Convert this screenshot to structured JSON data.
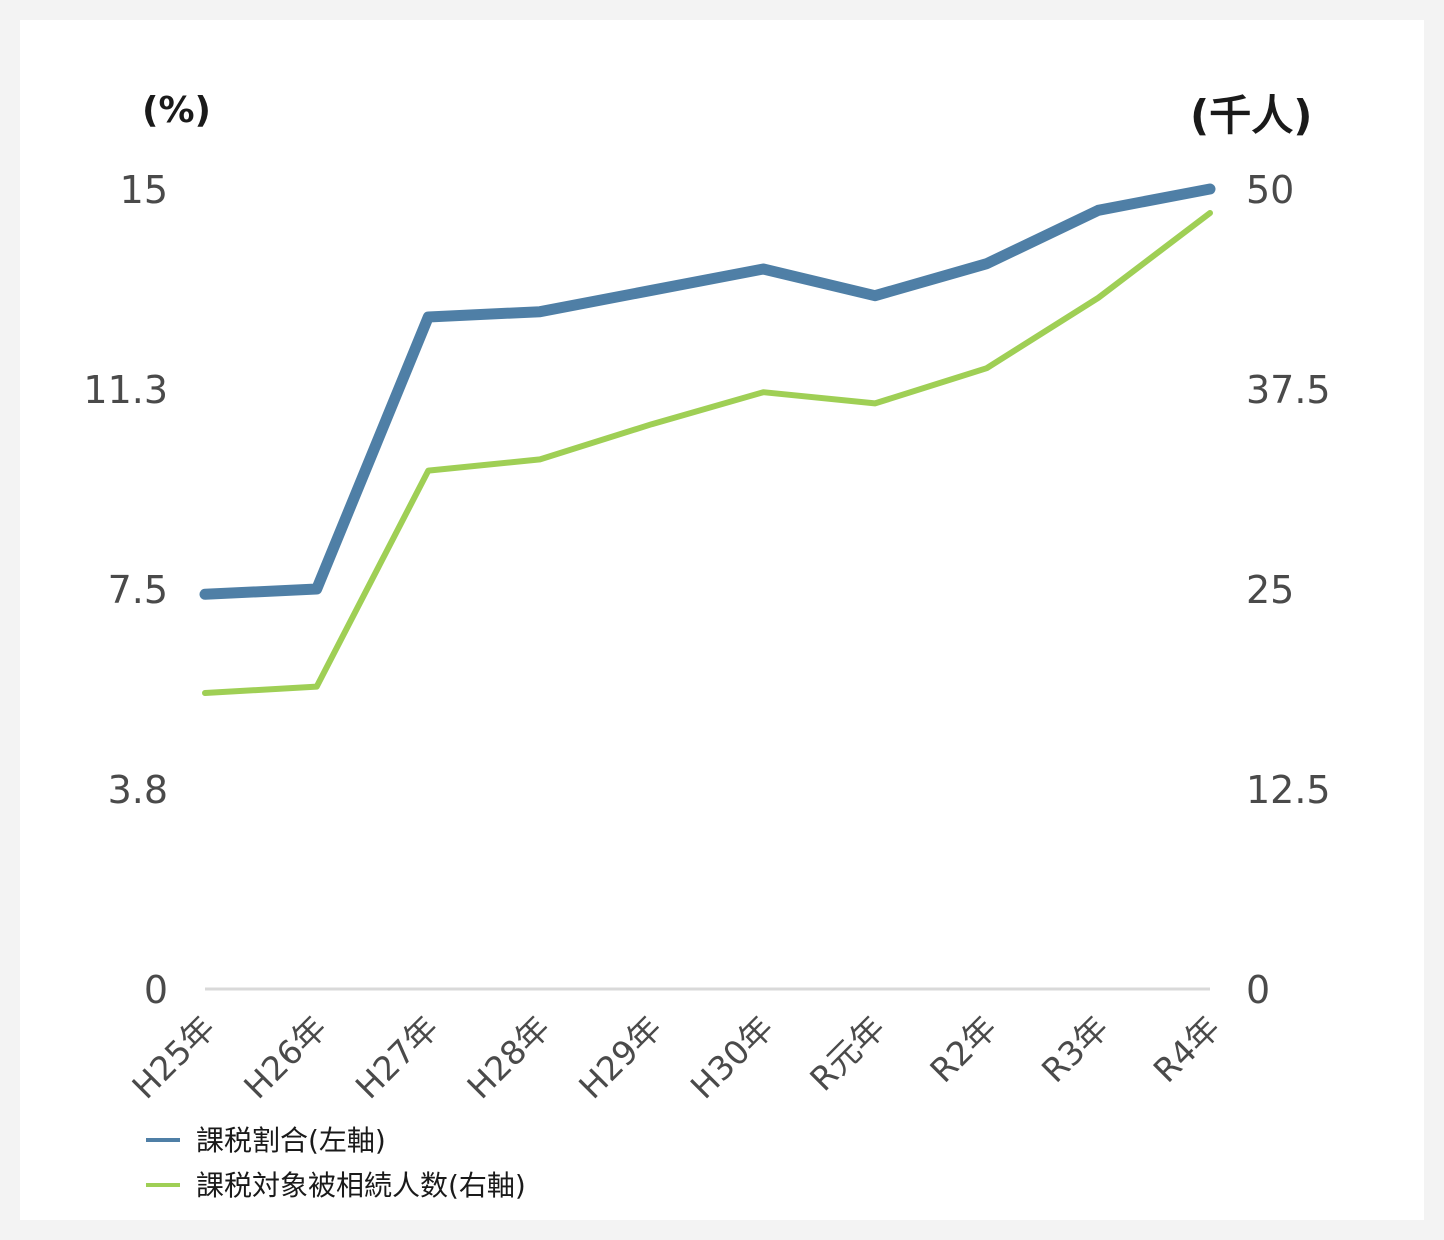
{
  "chart_data": {
    "type": "line",
    "categories": [
      "H25年",
      "H26年",
      "H27年",
      "H28年",
      "H29年",
      "H30年",
      "R元年",
      "R2年",
      "R3年",
      "R4年"
    ],
    "series": [
      {
        "name": "課税割合(左軸)",
        "axis": "left",
        "color": "#4f7fa6",
        "values": [
          7.4,
          7.5,
          12.6,
          12.7,
          13.1,
          13.5,
          13.0,
          13.6,
          14.6,
          15.0
        ]
      },
      {
        "name": "課税対象被相続人数(右軸)",
        "axis": "right",
        "color": "#9fcf55",
        "values": [
          18.5,
          18.9,
          32.4,
          33.1,
          35.3,
          37.3,
          36.6,
          38.8,
          43.2,
          48.5
        ]
      }
    ],
    "y_left": {
      "unit": "(%)",
      "ticks": [
        "0",
        "3.8",
        "7.5",
        "11.3",
        "15"
      ],
      "ylim": [
        0,
        15
      ]
    },
    "y_right": {
      "unit": "(千人)",
      "ticks": [
        "0",
        "12.5",
        "25",
        "37.5",
        "50"
      ],
      "ylim": [
        0,
        50
      ]
    },
    "grid": false,
    "legend_position": "bottom-left"
  }
}
